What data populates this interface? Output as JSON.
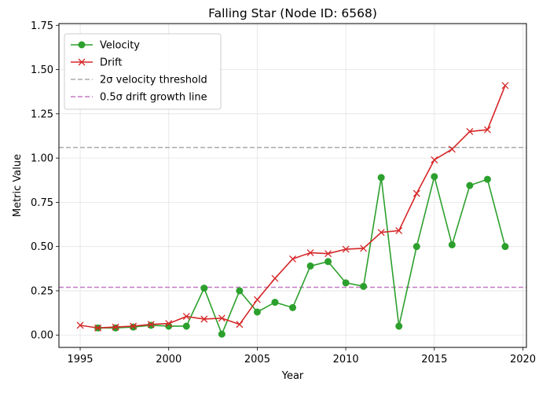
{
  "chart_data": {
    "type": "line",
    "title": "Falling Star (Node ID: 6568)",
    "xlabel": "Year",
    "ylabel": "Metric Value",
    "xlim": [
      1993.8,
      2020.2
    ],
    "ylim": [
      -0.07,
      1.76
    ],
    "x_ticks": [
      1995,
      2000,
      2005,
      2010,
      2015,
      2020
    ],
    "y_ticks": [
      0.0,
      0.25,
      0.5,
      0.75,
      1.0,
      1.25,
      1.5,
      1.75
    ],
    "x_tick_labels": [
      "1995",
      "2000",
      "2005",
      "2010",
      "2015",
      "2020"
    ],
    "y_tick_labels": [
      "0.00",
      "0.25",
      "0.50",
      "0.75",
      "1.00",
      "1.25",
      "1.50",
      "1.75"
    ],
    "grid": true,
    "legend_position": "top-left",
    "series": [
      {
        "name": "Velocity",
        "color": "#2ca02c",
        "marker": "circle",
        "x": [
          1996,
          1997,
          1998,
          1999,
          2000,
          2001,
          2002,
          2003,
          2004,
          2005,
          2006,
          2007,
          2008,
          2009,
          2010,
          2011,
          2012,
          2013,
          2014,
          2015,
          2016,
          2017,
          2018,
          2019
        ],
        "values": [
          0.04,
          0.04,
          0.045,
          0.055,
          0.05,
          0.05,
          0.265,
          0.005,
          0.25,
          0.13,
          0.185,
          0.155,
          0.39,
          0.415,
          0.295,
          0.275,
          0.89,
          0.05,
          0.5,
          0.895,
          0.51,
          0.845,
          0.88,
          0.5
        ]
      },
      {
        "name": "Drift",
        "color": "#d62728",
        "marker": "x",
        "x": [
          1995,
          1996,
          1997,
          1998,
          1999,
          2000,
          2001,
          2002,
          2003,
          2004,
          2005,
          2006,
          2007,
          2008,
          2009,
          2010,
          2011,
          2012,
          2013,
          2014,
          2015,
          2016,
          2017,
          2018,
          2019
        ],
        "values": [
          0.055,
          0.04,
          0.045,
          0.05,
          0.06,
          0.065,
          0.105,
          0.09,
          0.095,
          0.06,
          0.2,
          0.32,
          0.43,
          0.465,
          0.46,
          0.485,
          0.49,
          0.58,
          0.59,
          0.8,
          0.99,
          1.05,
          1.15,
          1.16,
          1.41
        ]
      }
    ],
    "reference_lines": [
      {
        "name": "2σ velocity threshold",
        "value": 1.06,
        "color": "#aaaaaa",
        "style": "dashed"
      },
      {
        "name": "0.5σ drift growth line",
        "value": 0.27,
        "color": "#c27ac2",
        "style": "dashed"
      }
    ]
  }
}
